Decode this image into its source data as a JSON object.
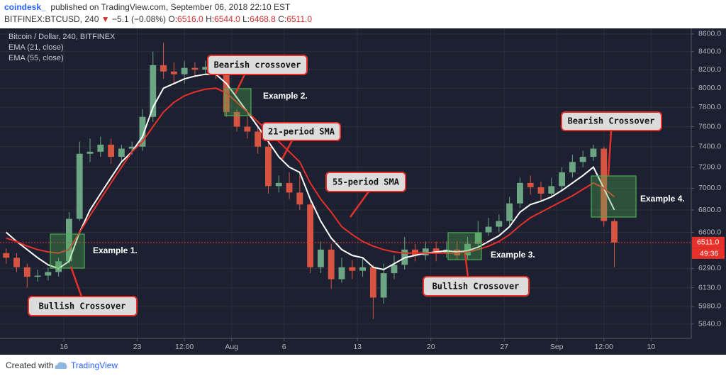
{
  "header": {
    "brand": "coindesk_",
    "published": "published on TradingView.com, September 06, 2018 22:10 EST",
    "symbol": "BITFINEX:BTCUSD, 240",
    "arrow": "▼",
    "change": "−5.1 (−0.08%)",
    "o_label": "O:",
    "o": "6516.0",
    "h_label": "H:",
    "h": "6544.0",
    "l_label": "L:",
    "l": "6468.8",
    "c_label": "C:",
    "c": "6511.0"
  },
  "footer": {
    "created": "Created with",
    "product": "TradingView"
  },
  "chart_data": {
    "type": "candlestick",
    "log_scale": true,
    "grid": true,
    "x": [
      "2018-07-10",
      "2018-07-11",
      "2018-07-12",
      "2018-07-13",
      "2018-07-14",
      "2018-07-15",
      "2018-07-16",
      "2018-07-17",
      "2018-07-18",
      "2018-07-19",
      "2018-07-20",
      "2018-07-21",
      "2018-07-22",
      "2018-07-23",
      "2018-07-24",
      "2018-07-25",
      "2018-07-26",
      "2018-07-27",
      "2018-07-28",
      "2018-07-29",
      "2018-07-30",
      "2018-07-31",
      "2018-08-01",
      "2018-08-02",
      "2018-08-03",
      "2018-08-04",
      "2018-08-05",
      "2018-08-06",
      "2018-08-07",
      "2018-08-08",
      "2018-08-09",
      "2018-08-10",
      "2018-08-11",
      "2018-08-12",
      "2018-08-13",
      "2018-08-14",
      "2018-08-15",
      "2018-08-16",
      "2018-08-17",
      "2018-08-18",
      "2018-08-19",
      "2018-08-20",
      "2018-08-21",
      "2018-08-22",
      "2018-08-23",
      "2018-08-24",
      "2018-08-25",
      "2018-08-26",
      "2018-08-27",
      "2018-08-28",
      "2018-08-29",
      "2018-08-30",
      "2018-08-31",
      "2018-09-01",
      "2018-09-02",
      "2018-09-03",
      "2018-09-04",
      "2018-09-05",
      "2018-09-06"
    ],
    "series": [
      {
        "name": "Bitcoin / Dollar, 240, BITFINEX",
        "up_color": "#6ba583",
        "down_color": "#d75442",
        "open": [
          6420,
          6380,
          6300,
          6220,
          6230,
          6260,
          6350,
          6720,
          7330,
          7350,
          7420,
          7300,
          7380,
          7400,
          7700,
          8250,
          8180,
          8150,
          8220,
          8200,
          8230,
          8180,
          7750,
          7600,
          7550,
          7400,
          7020,
          7050,
          6960,
          6850,
          6300,
          6450,
          6200,
          6300,
          6270,
          6300,
          6050,
          6250,
          6320,
          6450,
          6400,
          6460,
          6420,
          6450,
          6400,
          6500,
          6600,
          6650,
          6700,
          6860,
          7050,
          7010,
          6950,
          7020,
          7150,
          7250,
          7300,
          7380,
          6700
        ],
        "high": [
          6460,
          6420,
          6330,
          6280,
          6300,
          6380,
          6780,
          7450,
          7480,
          7500,
          7480,
          7420,
          7450,
          7780,
          8400,
          8500,
          8280,
          8300,
          8280,
          8300,
          8280,
          8200,
          7780,
          7700,
          7600,
          7450,
          7120,
          7150,
          7150,
          6900,
          6520,
          6500,
          6380,
          6360,
          6380,
          6320,
          6330,
          6400,
          6560,
          6500,
          6520,
          6520,
          6520,
          6520,
          6560,
          6700,
          6730,
          6760,
          6920,
          7100,
          7120,
          7060,
          7100,
          7200,
          7320,
          7360,
          7420,
          7400,
          6720
        ],
        "low": [
          6330,
          6260,
          6130,
          6180,
          6190,
          6220,
          6330,
          6700,
          7250,
          7300,
          7230,
          7260,
          7320,
          7360,
          7650,
          8100,
          8050,
          8050,
          8130,
          8150,
          8100,
          7700,
          7550,
          7480,
          7330,
          6950,
          6960,
          6900,
          6800,
          6250,
          6250,
          6120,
          6170,
          6200,
          6220,
          5880,
          6000,
          6200,
          6280,
          6350,
          6360,
          6350,
          6380,
          6360,
          6370,
          6460,
          6570,
          6600,
          6650,
          6820,
          6940,
          6880,
          6920,
          6980,
          7100,
          7200,
          7260,
          6650,
          6300
        ],
        "close": [
          6380,
          6300,
          6220,
          6230,
          6260,
          6350,
          6720,
          7330,
          7350,
          7420,
          7300,
          7380,
          7400,
          7700,
          8250,
          8180,
          8150,
          8220,
          8200,
          8230,
          8180,
          7750,
          7600,
          7550,
          7400,
          7020,
          7050,
          6960,
          6850,
          6300,
          6450,
          6200,
          6300,
          6270,
          6300,
          6050,
          6250,
          6320,
          6450,
          6400,
          6460,
          6420,
          6450,
          6400,
          6500,
          6600,
          6650,
          6700,
          6860,
          7050,
          7010,
          6950,
          7020,
          7150,
          7250,
          7300,
          7380,
          6700,
          6511
        ]
      },
      {
        "name": "EMA (21, close)",
        "color": "#ffffff",
        "values": [
          6600,
          6520,
          6450,
          6380,
          6320,
          6290,
          6350,
          6600,
          6800,
          6950,
          7100,
          7250,
          7350,
          7500,
          7800,
          8000,
          8050,
          8100,
          8130,
          8150,
          8150,
          8050,
          7900,
          7750,
          7600,
          7450,
          7300,
          7200,
          7150,
          6900,
          6700,
          6550,
          6450,
          6400,
          6380,
          6300,
          6280,
          6330,
          6380,
          6400,
          6420,
          6430,
          6440,
          6430,
          6440,
          6470,
          6520,
          6570,
          6650,
          6780,
          6850,
          6880,
          6920,
          6980,
          7050,
          7120,
          7200,
          7000,
          6800
        ]
      },
      {
        "name": "EMA (55, close)",
        "color": "#e8302a",
        "values": [
          6550,
          6520,
          6480,
          6450,
          6430,
          6420,
          6450,
          6600,
          6750,
          6900,
          7050,
          7200,
          7350,
          7450,
          7600,
          7750,
          7850,
          7920,
          7960,
          7990,
          8000,
          7950,
          7850,
          7750,
          7650,
          7550,
          7450,
          7350,
          7250,
          7050,
          6900,
          6780,
          6650,
          6580,
          6520,
          6480,
          6450,
          6430,
          6420,
          6420,
          6420,
          6420,
          6420,
          6420,
          6430,
          6450,
          6480,
          6520,
          6580,
          6660,
          6730,
          6780,
          6830,
          6880,
          6930,
          6990,
          7050,
          7000,
          6920
        ]
      }
    ],
    "xlim": [
      "2018-07-10T06:00",
      "2018-09-13T20:00"
    ],
    "xticks": [
      {
        "value": "2018-07-16",
        "label": "16"
      },
      {
        "value": "2018-07-23",
        "label": "23"
      },
      {
        "value": "2018-07-27T12:00",
        "label": "12:00"
      },
      {
        "value": "2018-08-01",
        "label": "Aug"
      },
      {
        "value": "2018-08-06",
        "label": "6"
      },
      {
        "value": "2018-08-13",
        "label": "13"
      },
      {
        "value": "2018-08-20",
        "label": "20"
      },
      {
        "value": "2018-08-27",
        "label": "27"
      },
      {
        "value": "2018-09-01",
        "label": "Sep"
      },
      {
        "value": "2018-09-05T12:00",
        "label": "12:00"
      },
      {
        "value": "2018-09-10",
        "label": "10"
      }
    ],
    "ylim": [
      5740,
      8665
    ],
    "yticks": [
      {
        "value": 8600,
        "label": "8600.0"
      },
      {
        "value": 8400,
        "label": "8400.0"
      },
      {
        "value": 8200,
        "label": "8200.0"
      },
      {
        "value": 8000,
        "label": "8000.0"
      },
      {
        "value": 7800,
        "label": "7800.0"
      },
      {
        "value": 7600,
        "label": "7600.0"
      },
      {
        "value": 7400,
        "label": "7400.0"
      },
      {
        "value": 7200,
        "label": "7200.0"
      },
      {
        "value": 7000,
        "label": "7000.0"
      },
      {
        "value": 6800,
        "label": "6800.0"
      },
      {
        "value": 6600,
        "label": "6600.0"
      },
      {
        "value": 6290,
        "label": "6290.0"
      },
      {
        "value": 6130,
        "label": "6130.0"
      },
      {
        "value": 5980,
        "label": "5980.0"
      },
      {
        "value": 5840,
        "label": "5840.0"
      }
    ],
    "last_price": {
      "value": 6511,
      "label": "6511.0",
      "color": "#e8302a"
    },
    "countdown": "49:36",
    "annotations": [
      "Bearish crossover",
      "21-period SMA",
      "55-period SMA",
      "Bearish Crossover",
      "Bullish Crossover",
      "Bullish Crossover",
      "Example 1.",
      "Example 2.",
      "Example 3.",
      "Example 4."
    ]
  }
}
